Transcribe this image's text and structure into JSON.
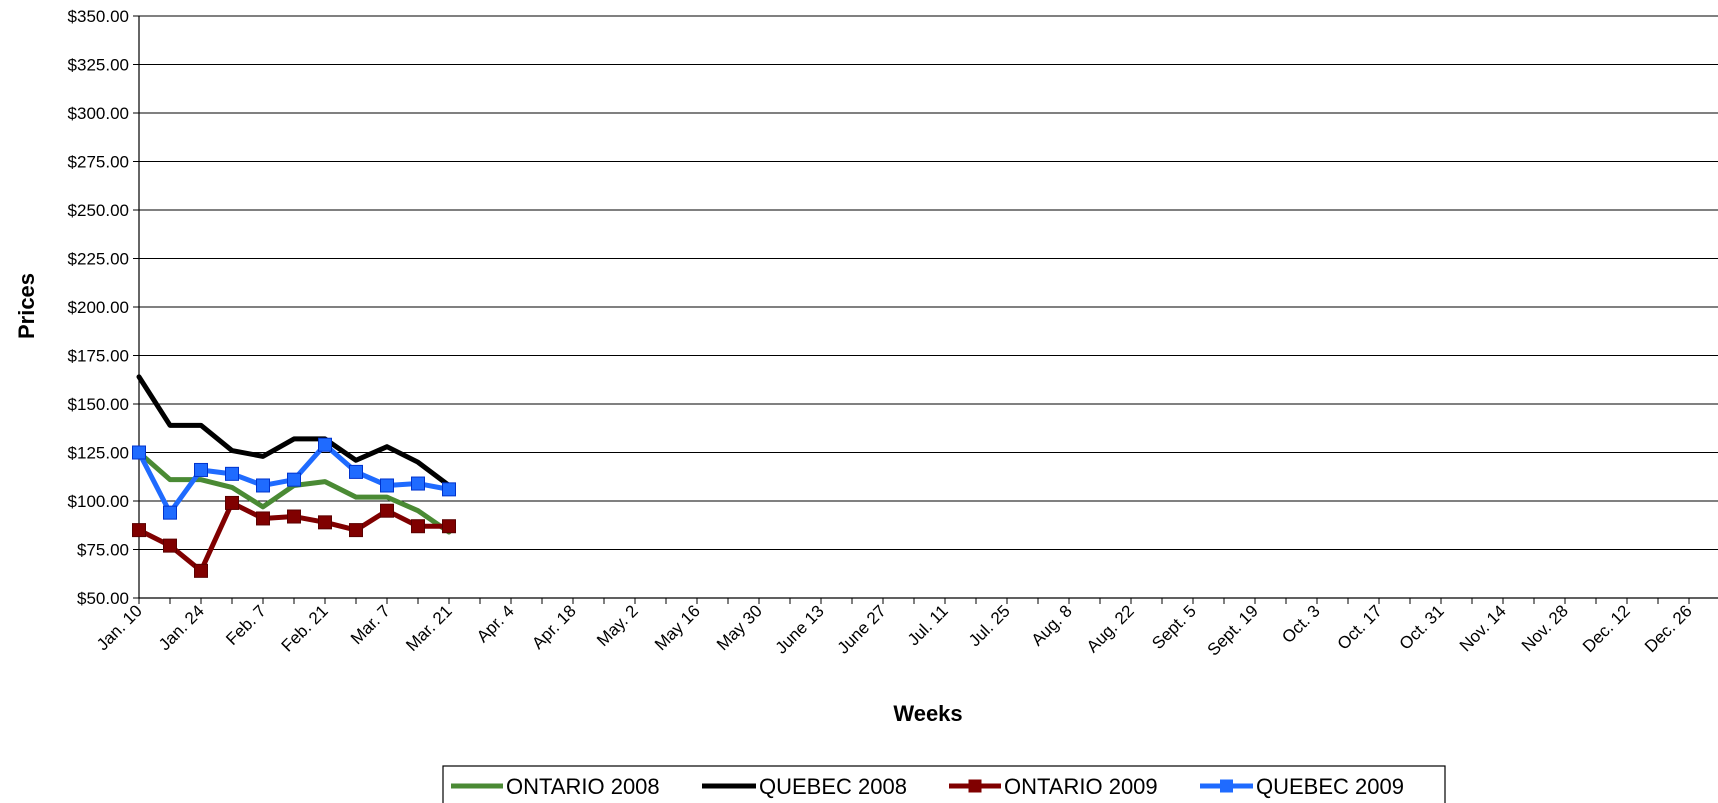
{
  "chart_data": {
    "type": "line",
    "title": "",
    "xlabel": "Weeks",
    "ylabel": "Prices",
    "ylim": [
      50,
      350
    ],
    "y_ticks": [
      50,
      75,
      100,
      125,
      150,
      175,
      200,
      225,
      250,
      275,
      300,
      325,
      350
    ],
    "y_tick_labels": [
      "$50.00",
      "$75.00",
      "$100.00",
      "$125.00",
      "$150.00",
      "$175.00",
      "$200.00",
      "$225.00",
      "$250.00",
      "$275.00",
      "$300.00",
      "$325.00",
      "$350.00"
    ],
    "x_tick_labels": [
      "Jan. 10",
      "Jan. 24",
      "Feb. 7",
      "Feb. 21",
      "Mar. 7",
      "Mar. 21",
      "Apr. 4",
      "Apr. 18",
      "May. 2",
      "May 16",
      "May 30",
      "June 13",
      "June 27",
      "Jul. 11",
      "Jul. 25",
      "Aug. 8",
      "Aug. 22",
      "Sept. 5",
      "Sept. 19",
      "Oct. 3",
      "Oct. 17",
      "Oct. 31",
      "Nov. 14",
      "Nov. 28",
      "Dec. 12",
      "Dec. 26"
    ],
    "week_count": 52,
    "grid": true,
    "legend_position": "bottom",
    "series": [
      {
        "name": "ONTARIO 2008",
        "color": "#4a8a34",
        "marker": "none",
        "values": [
          125,
          111,
          111,
          107,
          97,
          108,
          110,
          102,
          102,
          95,
          84
        ]
      },
      {
        "name": "QUEBEC 2008",
        "color": "#000000",
        "marker": "none",
        "values": [
          164,
          139,
          139,
          126,
          123,
          132,
          132,
          121,
          128,
          120,
          108
        ]
      },
      {
        "name": "ONTARIO 2009",
        "color": "#800000",
        "marker": "square",
        "values": [
          85,
          77,
          64,
          99,
          91,
          92,
          89,
          85,
          95,
          87,
          87
        ]
      },
      {
        "name": "QUEBEC 2009",
        "color": "#1f6bff",
        "marker": "square",
        "values": [
          125,
          94,
          116,
          114,
          108,
          111,
          129,
          115,
          108,
          109,
          106
        ]
      }
    ]
  }
}
